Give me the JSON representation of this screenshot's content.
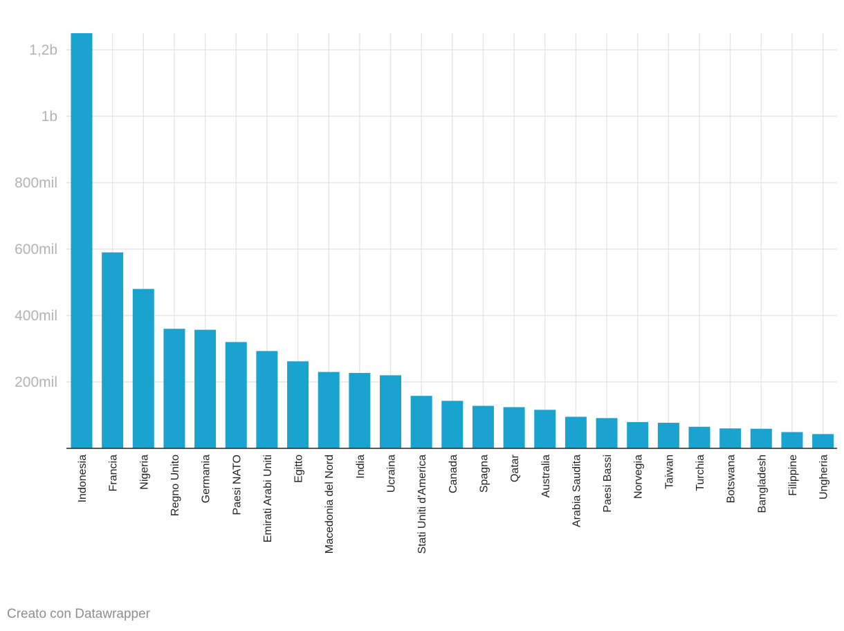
{
  "chart_data": {
    "type": "bar",
    "categories": [
      "Indonesia",
      "Francia",
      "Nigeria",
      "Regno Unito",
      "Germania",
      "Paesi NATO",
      "Emirati Arabi Uniti",
      "Egitto",
      "Macedonia del Nord",
      "India",
      "Ucraina",
      "Stati Uniti d'America",
      "Canada",
      "Spagna",
      "Qatar",
      "Australia",
      "Arabia Saudita",
      "Paesi Bassi",
      "Norvegia",
      "Taiwan",
      "Turchia",
      "Botswana",
      "Bangladesh",
      "Filippine",
      "Ungheria"
    ],
    "values": [
      1250000000,
      590000000,
      480000000,
      360000000,
      357000000,
      320000000,
      293000000,
      262000000,
      230000000,
      227000000,
      220000000,
      158000000,
      143000000,
      128000000,
      124000000,
      116000000,
      95000000,
      91000000,
      79000000,
      77000000,
      65000000,
      60000000,
      59000000,
      49000000,
      43000000
    ],
    "yticks": [
      200000000,
      400000000,
      600000000,
      800000000,
      1000000000,
      1200000000
    ],
    "ytick_labels": [
      "200mil",
      "400mil",
      "600mil",
      "800mil",
      "1b",
      "1,2b"
    ],
    "ylim": [
      0,
      1250000000
    ],
    "bar_color": "#1ba3cf",
    "grid": true
  },
  "footer": {
    "credit": "Creato con Datawrapper"
  }
}
